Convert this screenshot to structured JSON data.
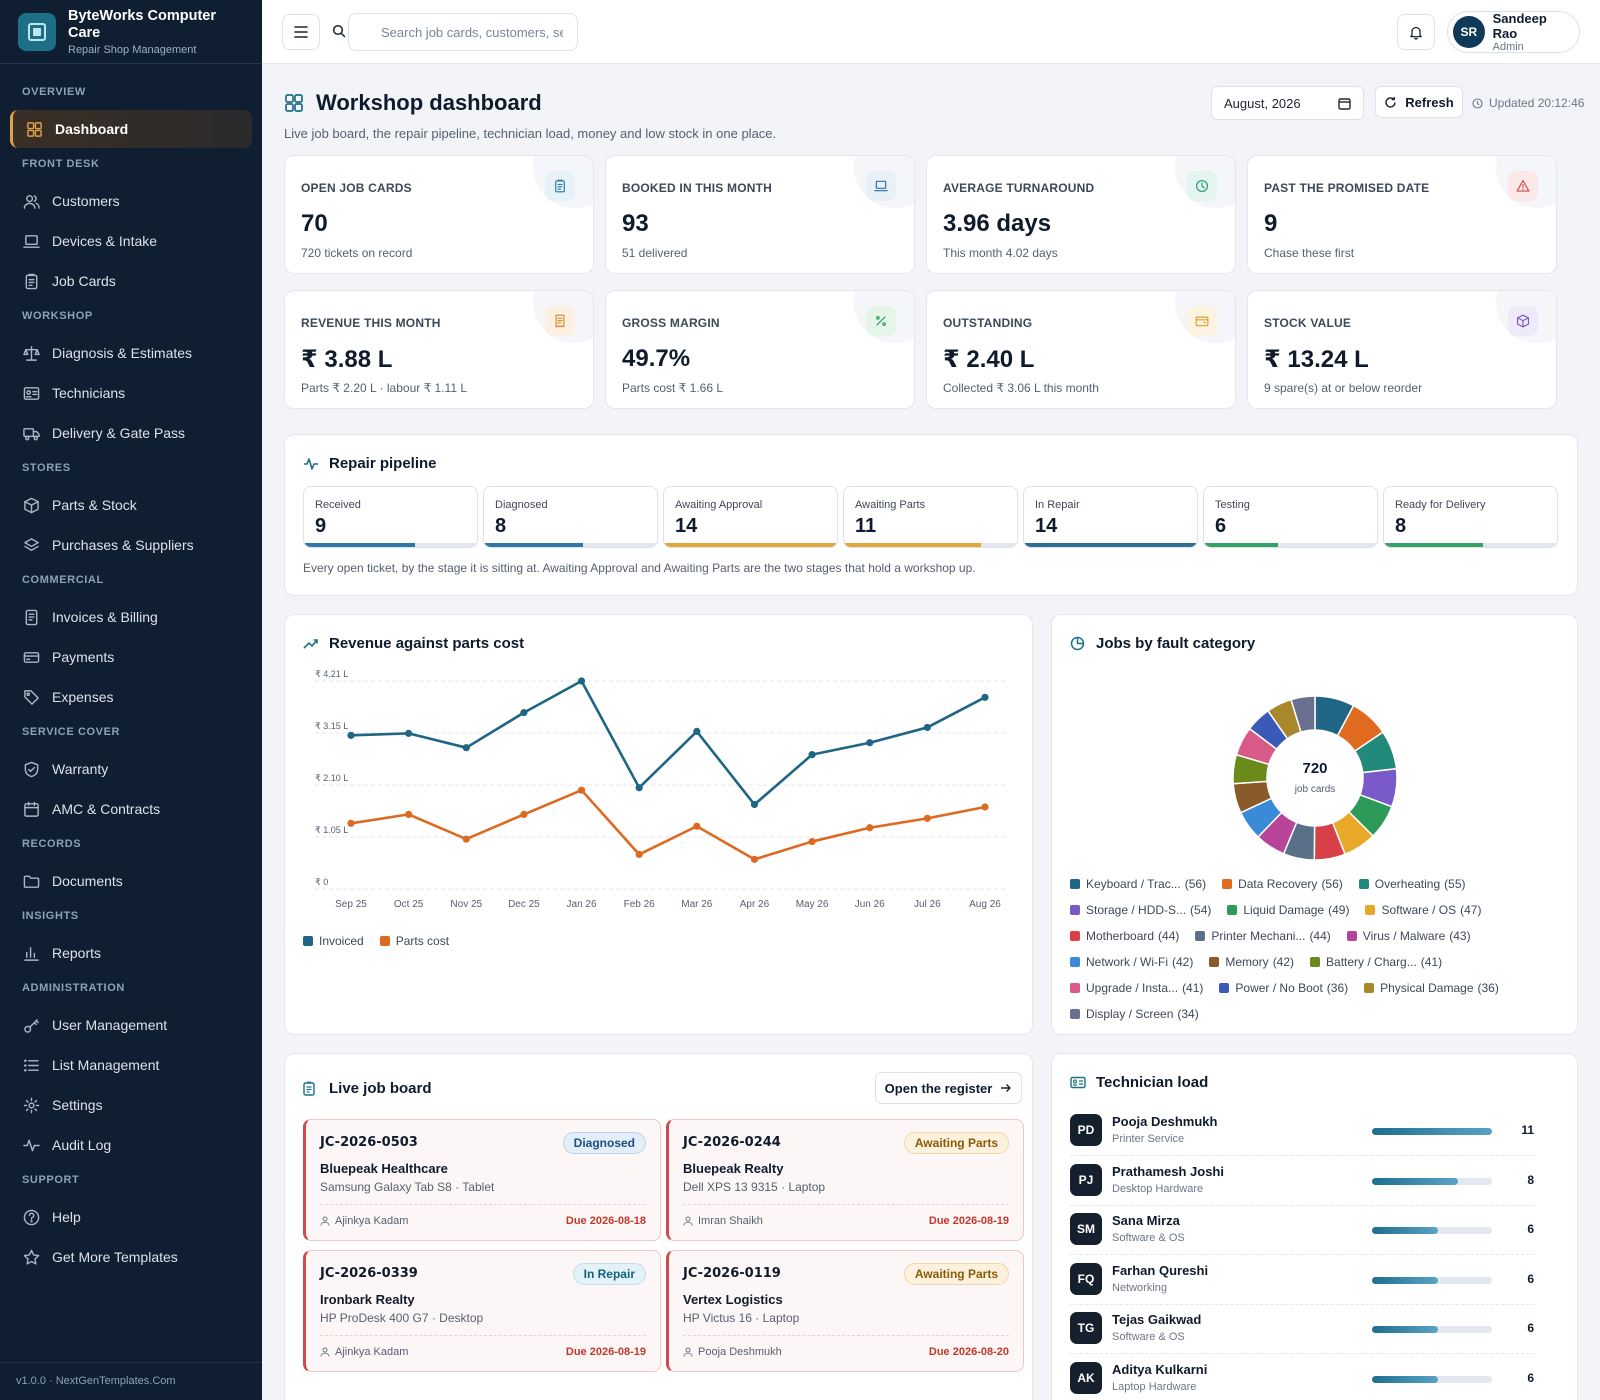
{
  "brand": {
    "title": "ByteWorks Computer Care",
    "subtitle": "Repair Shop Management"
  },
  "sidebar": {
    "sections": [
      {
        "title": "Overview",
        "items": [
          {
            "label": "Dashboard",
            "icon": "dashboard-icon",
            "active": true
          }
        ]
      },
      {
        "title": "Front Desk",
        "items": [
          {
            "label": "Customers",
            "icon": "users-icon"
          },
          {
            "label": "Devices & Intake",
            "icon": "laptop-icon"
          },
          {
            "label": "Job Cards",
            "icon": "clipboard-icon"
          }
        ]
      },
      {
        "title": "Workshop",
        "items": [
          {
            "label": "Diagnosis & Estimates",
            "icon": "scale-icon"
          },
          {
            "label": "Technicians",
            "icon": "id-card-icon"
          },
          {
            "label": "Delivery & Gate Pass",
            "icon": "truck-icon"
          }
        ]
      },
      {
        "title": "Stores",
        "items": [
          {
            "label": "Parts & Stock",
            "icon": "box-icon"
          },
          {
            "label": "Purchases & Suppliers",
            "icon": "layers-icon"
          }
        ]
      },
      {
        "title": "Commercial",
        "items": [
          {
            "label": "Invoices & Billing",
            "icon": "invoice-icon"
          },
          {
            "label": "Payments",
            "icon": "card-icon"
          },
          {
            "label": "Expenses",
            "icon": "tag-icon"
          }
        ]
      },
      {
        "title": "Service Cover",
        "items": [
          {
            "label": "Warranty",
            "icon": "shield-icon"
          },
          {
            "label": "AMC & Contracts",
            "icon": "calendar-icon"
          }
        ]
      },
      {
        "title": "Records",
        "items": [
          {
            "label": "Documents",
            "icon": "folder-icon"
          }
        ]
      },
      {
        "title": "Insights",
        "items": [
          {
            "label": "Reports",
            "icon": "bar-chart-icon"
          }
        ]
      },
      {
        "title": "Administration",
        "items": [
          {
            "label": "User Management",
            "icon": "key-icon"
          },
          {
            "label": "List Management",
            "icon": "list-icon"
          },
          {
            "label": "Settings",
            "icon": "gear-icon"
          },
          {
            "label": "Audit Log",
            "icon": "activity-icon"
          }
        ]
      },
      {
        "title": "Support",
        "items": [
          {
            "label": "Help",
            "icon": "help-icon"
          },
          {
            "label": "Get More Templates",
            "icon": "star-icon"
          }
        ]
      }
    ],
    "footer": "v1.0.0 · NextGenTemplates.Com"
  },
  "topbar": {
    "search_placeholder": "Search job cards, customers, seri",
    "user": {
      "initials": "SR",
      "name": "Sandeep Rao",
      "role": "Admin"
    }
  },
  "page": {
    "title": "Workshop dashboard",
    "subtitle": "Live job board, the repair pipeline, technician load, money and low stock in one place.",
    "month": "August, 2026",
    "refresh_label": "Refresh",
    "updated": "Updated 20:12:46"
  },
  "kpis": [
    {
      "label": "Open job cards",
      "value": "70",
      "sub": "720 tickets on record",
      "icon": "clipboard-icon",
      "color": "#2b7a9c",
      "bg": "#e6f2f7"
    },
    {
      "label": "Booked in this month",
      "value": "93",
      "sub": "51 delivered",
      "icon": "laptop-icon",
      "color": "#2b6fa8",
      "bg": "#e8f0f8"
    },
    {
      "label": "Average turnaround",
      "value": "3.96 days",
      "sub": "This month 4.02 days",
      "icon": "clock-icon",
      "color": "#2a9a7a",
      "bg": "#e4f4ef"
    },
    {
      "label": "Past the promised date",
      "value": "9",
      "sub": "Chase these first",
      "icon": "warning-icon",
      "color": "#d04a4a",
      "bg": "#fbe9e9"
    },
    {
      "label": "Revenue this month",
      "value": "₹ 3.88 L",
      "sub": "Parts ₹ 2.20 L · labour ₹ 1.11 L",
      "icon": "receipt-icon",
      "color": "#d88a2b",
      "bg": "#fcf0e2"
    },
    {
      "label": "Gross margin",
      "value": "49.7%",
      "sub": "Parts cost ₹ 1.66 L",
      "icon": "percent-icon",
      "color": "#2a9a5a",
      "bg": "#e5f5ea"
    },
    {
      "label": "Outstanding",
      "value": "₹ 2.40 L",
      "sub": "Collected ₹ 3.06 L this month",
      "icon": "wallet-icon",
      "color": "#d8a02b",
      "bg": "#fcf3e0"
    },
    {
      "label": "Stock value",
      "value": "₹ 13.24 L",
      "sub": "9 spare(s) at or below reorder",
      "icon": "cube-icon",
      "color": "#7a5ac0",
      "bg": "#efeafa"
    }
  ],
  "pipeline": {
    "title": "Repair pipeline",
    "note": "Every open ticket, by the stage it is sitting at. Awaiting Approval and Awaiting Parts are the two stages that hold a workshop up.",
    "stages": [
      {
        "label": "Received",
        "value": "9",
        "fill": 0.64,
        "color": "#2f77a6"
      },
      {
        "label": "Diagnosed",
        "value": "8",
        "fill": 0.57,
        "color": "#2f77a6"
      },
      {
        "label": "Awaiting Approval",
        "value": "14",
        "fill": 1.0,
        "color": "#e0a83a"
      },
      {
        "label": "Awaiting Parts",
        "value": "11",
        "fill": 0.79,
        "color": "#e0a83a"
      },
      {
        "label": "In Repair",
        "value": "14",
        "fill": 1.0,
        "color": "#2f6f93"
      },
      {
        "label": "Testing",
        "value": "6",
        "fill": 0.43,
        "color": "#34a06a"
      },
      {
        "label": "Ready for Delivery",
        "value": "8",
        "fill": 0.57,
        "color": "#34a06a"
      }
    ]
  },
  "revenue_panel": {
    "title": "Revenue against parts cost"
  },
  "fault_panel": {
    "title": "Jobs by fault category",
    "center_value": "720",
    "center_label": "job cards"
  },
  "chart_data": [
    {
      "type": "line",
      "title": "Revenue against parts cost",
      "x": [
        "Sep 25",
        "Oct 25",
        "Nov 25",
        "Dec 25",
        "Jan 26",
        "Feb 26",
        "Mar 26",
        "Apr 26",
        "May 26",
        "Jun 26",
        "Jul 26",
        "Aug 26"
      ],
      "yticks": [
        "₹ 0",
        "₹ 1.05 L",
        "₹ 2.10 L",
        "₹ 3.15 L",
        "₹ 4.21 L"
      ],
      "ylim": [
        0,
        4.21
      ],
      "grid": true,
      "legend": "bottom-left",
      "series": [
        {
          "name": "Invoiced",
          "color": "#1f6584",
          "values": [
            3.11,
            3.15,
            2.86,
            3.57,
            4.21,
            2.05,
            3.19,
            1.71,
            2.72,
            2.96,
            3.27,
            3.88
          ]
        },
        {
          "name": "Parts cost",
          "color": "#dd6a22",
          "values": [
            1.33,
            1.51,
            1.01,
            1.51,
            2.0,
            0.7,
            1.27,
            0.6,
            0.96,
            1.24,
            1.43,
            1.66
          ]
        }
      ]
    },
    {
      "type": "pie",
      "title": "Jobs by fault category",
      "legend": "bottom",
      "slices": [
        {
          "label": "Keyboard / Trac...",
          "value": 56,
          "color": "#1f6584"
        },
        {
          "label": "Data Recovery",
          "value": 56,
          "color": "#e06a1f"
        },
        {
          "label": "Overheating",
          "value": 55,
          "color": "#218a7a"
        },
        {
          "label": "Storage / HDD-S...",
          "value": 54,
          "color": "#7a5ac8"
        },
        {
          "label": "Liquid Damage",
          "value": 49,
          "color": "#2e9a5a"
        },
        {
          "label": "Software / OS",
          "value": 47,
          "color": "#e8a82a"
        },
        {
          "label": "Motherboard",
          "value": 44,
          "color": "#d84048"
        },
        {
          "label": "Printer Mechani...",
          "value": 44,
          "color": "#5a7088"
        },
        {
          "label": "Virus / Malware",
          "value": 43,
          "color": "#b8449a"
        },
        {
          "label": "Network / Wi-Fi",
          "value": 42,
          "color": "#3a8ad8"
        },
        {
          "label": "Memory",
          "value": 42,
          "color": "#8a5a2a"
        },
        {
          "label": "Battery / Charg...",
          "value": 41,
          "color": "#6a8a1a"
        },
        {
          "label": "Upgrade / Insta...",
          "value": 41,
          "color": "#d85a88"
        },
        {
          "label": "Power / No Boot",
          "value": 36,
          "color": "#3a5ab8"
        },
        {
          "label": "Physical Damage",
          "value": 36,
          "color": "#a8882a"
        },
        {
          "label": "Display / Screen",
          "value": 34,
          "color": "#6a7090"
        }
      ]
    }
  ],
  "job_board": {
    "title": "Live job board",
    "open_label": "Open the register",
    "jobs": [
      {
        "id": "JC-2026-0503",
        "status": "Diagnosed",
        "customer": "Bluepeak Healthcare",
        "device": "Samsung Galaxy Tab S8 · Tablet",
        "tech": "Ajinkya Kadam",
        "due": "Due 2026-08-18"
      },
      {
        "id": "JC-2026-0244",
        "status": "Awaiting Parts",
        "customer": "Bluepeak Realty",
        "device": "Dell XPS 13 9315 · Laptop",
        "tech": "Imran Shaikh",
        "due": "Due 2026-08-19"
      },
      {
        "id": "JC-2026-0339",
        "status": "In Repair",
        "customer": "Ironbark Realty",
        "device": "HP ProDesk 400 G7 · Desktop",
        "tech": "Ajinkya Kadam",
        "due": "Due 2026-08-19"
      },
      {
        "id": "JC-2026-0119",
        "status": "Awaiting Parts",
        "customer": "Vertex Logistics",
        "device": "HP Victus 16 · Laptop",
        "tech": "Pooja Deshmukh",
        "due": "Due 2026-08-20"
      }
    ]
  },
  "technicians": {
    "title": "Technician load",
    "rows": [
      {
        "initials": "PD",
        "name": "Pooja Deshmukh",
        "spec": "Printer Service",
        "count": "11",
        "fill": 1.0
      },
      {
        "initials": "PJ",
        "name": "Prathamesh Joshi",
        "spec": "Desktop Hardware",
        "count": "8",
        "fill": 0.72
      },
      {
        "initials": "SM",
        "name": "Sana Mirza",
        "spec": "Software & OS",
        "count": "6",
        "fill": 0.55
      },
      {
        "initials": "FQ",
        "name": "Farhan Qureshi",
        "spec": "Networking",
        "count": "6",
        "fill": 0.55
      },
      {
        "initials": "TG",
        "name": "Tejas Gaikwad",
        "spec": "Software & OS",
        "count": "6",
        "fill": 0.55
      },
      {
        "initials": "AK",
        "name": "Aditya Kulkarni",
        "spec": "Laptop Hardware",
        "count": "6",
        "fill": 0.55
      }
    ]
  }
}
